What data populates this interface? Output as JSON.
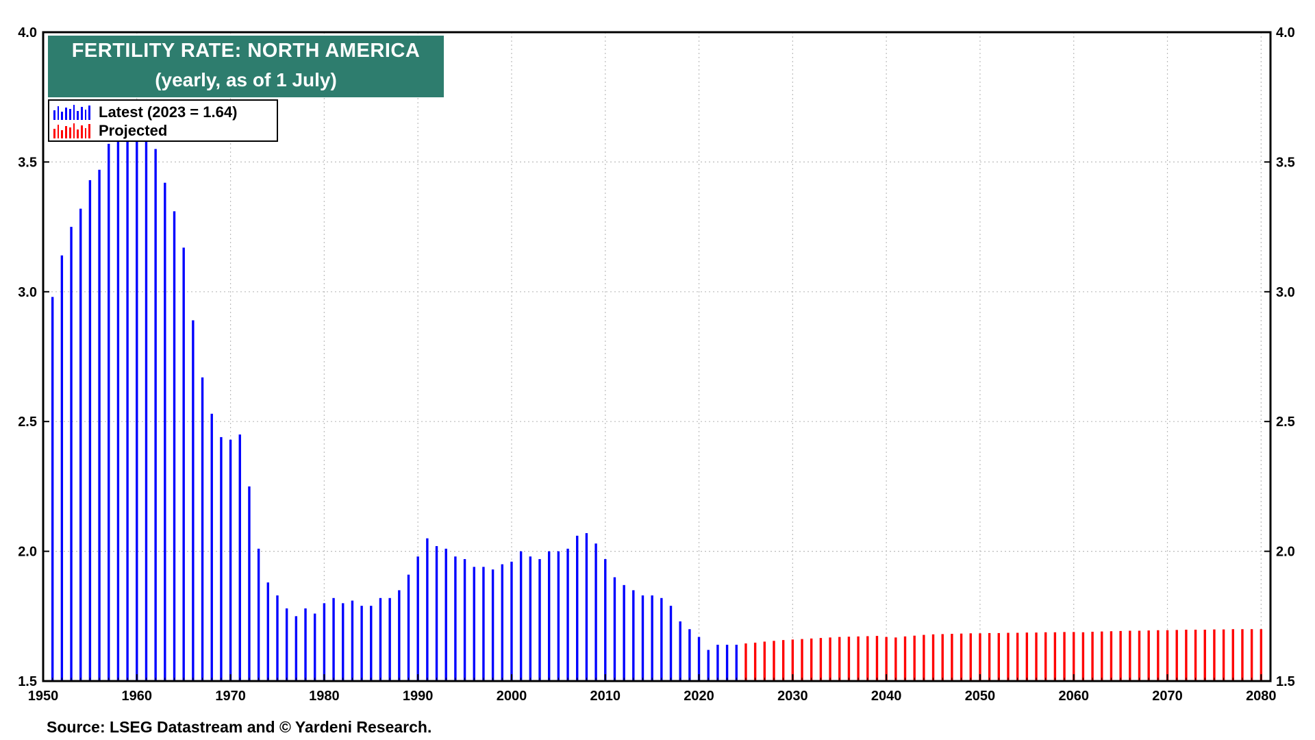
{
  "chart_data": {
    "type": "bar",
    "title": "FERTILITY RATE: NORTH AMERICA",
    "subtitle": "(yearly, as of 1 July)",
    "source": "Source: LSEG Datastream and © Yardeni Research.",
    "ylim": [
      1.5,
      4.0
    ],
    "xlim": [
      1950,
      2081
    ],
    "y_ticks": [
      "1.5",
      "2.0",
      "2.5",
      "3.0",
      "3.5",
      "4.0"
    ],
    "x_ticks": [
      "1950",
      "1960",
      "1970",
      "1980",
      "1990",
      "2000",
      "2010",
      "2020",
      "2030",
      "2040",
      "2050",
      "2060",
      "2070",
      "2080"
    ],
    "grid": true,
    "legend_placement": "top-left",
    "series": [
      {
        "name": "Latest (2023 = 1.64)",
        "color": "#0000ff",
        "x": [
          1951,
          1952,
          1953,
          1954,
          1955,
          1956,
          1957,
          1958,
          1959,
          1960,
          1961,
          1962,
          1963,
          1964,
          1965,
          1966,
          1967,
          1968,
          1969,
          1970,
          1971,
          1972,
          1973,
          1974,
          1975,
          1976,
          1977,
          1978,
          1979,
          1980,
          1981,
          1982,
          1983,
          1984,
          1985,
          1986,
          1987,
          1988,
          1989,
          1990,
          1991,
          1992,
          1993,
          1994,
          1995,
          1996,
          1997,
          1998,
          1999,
          2000,
          2001,
          2002,
          2003,
          2004,
          2005,
          2006,
          2007,
          2008,
          2009,
          2010,
          2011,
          2012,
          2013,
          2014,
          2015,
          2016,
          2017,
          2018,
          2019,
          2020,
          2021,
          2022,
          2023,
          2024
        ],
        "values": [
          2.98,
          3.14,
          3.25,
          3.32,
          3.43,
          3.47,
          3.57,
          3.58,
          3.59,
          3.59,
          3.58,
          3.55,
          3.42,
          3.31,
          3.17,
          2.89,
          2.67,
          2.53,
          2.44,
          2.43,
          2.45,
          2.25,
          2.01,
          1.88,
          1.83,
          1.78,
          1.75,
          1.78,
          1.76,
          1.8,
          1.82,
          1.8,
          1.81,
          1.79,
          1.79,
          1.82,
          1.82,
          1.85,
          1.91,
          1.98,
          2.05,
          2.02,
          2.01,
          1.98,
          1.97,
          1.94,
          1.94,
          1.93,
          1.95,
          1.96,
          2.0,
          1.98,
          1.97,
          2.0,
          2.0,
          2.01,
          2.06,
          2.07,
          2.03,
          1.97,
          1.9,
          1.87,
          1.85,
          1.83,
          1.83,
          1.82,
          1.79,
          1.73,
          1.7,
          1.67,
          1.62,
          1.64,
          1.64,
          1.64
        ]
      },
      {
        "name": "Projected",
        "color": "#ff0000",
        "x": [
          2025,
          2026,
          2027,
          2028,
          2029,
          2030,
          2031,
          2032,
          2033,
          2034,
          2035,
          2036,
          2037,
          2038,
          2039,
          2040,
          2041,
          2042,
          2043,
          2044,
          2045,
          2046,
          2047,
          2048,
          2049,
          2050,
          2051,
          2052,
          2053,
          2054,
          2055,
          2056,
          2057,
          2058,
          2059,
          2060,
          2061,
          2062,
          2063,
          2064,
          2065,
          2066,
          2067,
          2068,
          2069,
          2070,
          2071,
          2072,
          2073,
          2074,
          2075,
          2076,
          2077,
          2078,
          2079,
          2080
        ],
        "values": [
          1.645,
          1.648,
          1.652,
          1.655,
          1.658,
          1.66,
          1.662,
          1.664,
          1.666,
          1.668,
          1.67,
          1.671,
          1.672,
          1.673,
          1.674,
          1.67,
          1.668,
          1.672,
          1.675,
          1.678,
          1.68,
          1.681,
          1.682,
          1.683,
          1.684,
          1.684,
          1.685,
          1.685,
          1.686,
          1.686,
          1.687,
          1.687,
          1.688,
          1.688,
          1.689,
          1.689,
          1.688,
          1.69,
          1.691,
          1.692,
          1.693,
          1.694,
          1.694,
          1.695,
          1.696,
          1.696,
          1.697,
          1.698,
          1.698,
          1.698,
          1.699,
          1.699,
          1.7,
          1.7,
          1.7,
          1.7
        ]
      }
    ]
  }
}
